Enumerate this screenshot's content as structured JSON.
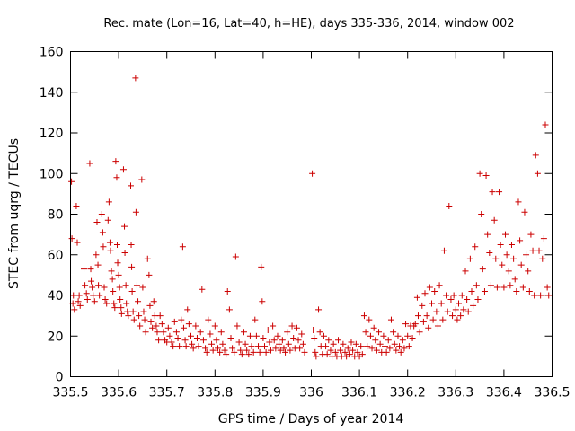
{
  "chart_data": {
    "type": "scatter",
    "title": "Rec. mate (Lon=16, Lat=40, h=HE), days 335-336, 2014, window 002",
    "xlabel": "GPS time / Days of year 2014",
    "ylabel": "STEC from uqrg / TECUs",
    "xlim": [
      335.5,
      336.5
    ],
    "ylim": [
      0,
      160
    ],
    "xticks": [
      "335.5",
      "335.6",
      "335.7",
      "335.8",
      "335.9",
      "336",
      "336.1",
      "336.2",
      "336.3",
      "336.4",
      "336.5"
    ],
    "yticks": [
      "0",
      "20",
      "40",
      "60",
      "80",
      "100",
      "120",
      "140",
      "160"
    ],
    "grid": false,
    "legend": "none",
    "marker": "plus",
    "color": "#cc0000",
    "points": [
      [
        335.502,
        96
      ],
      [
        335.503,
        68
      ],
      [
        335.506,
        40
      ],
      [
        335.505,
        36
      ],
      [
        335.508,
        33
      ],
      [
        335.512,
        84
      ],
      [
        335.514,
        66
      ],
      [
        335.518,
        40
      ],
      [
        335.516,
        37
      ],
      [
        335.52,
        35
      ],
      [
        335.528,
        53
      ],
      [
        335.53,
        45
      ],
      [
        335.533,
        41
      ],
      [
        335.535,
        38
      ],
      [
        335.54,
        105
      ],
      [
        335.542,
        53
      ],
      [
        335.543,
        47
      ],
      [
        335.545,
        44
      ],
      [
        335.547,
        40
      ],
      [
        335.55,
        37
      ],
      [
        335.553,
        60
      ],
      [
        335.555,
        76
      ],
      [
        335.557,
        55
      ],
      [
        335.558,
        45
      ],
      [
        335.56,
        40
      ],
      [
        335.565,
        80
      ],
      [
        335.567,
        71
      ],
      [
        335.568,
        64
      ],
      [
        335.57,
        44
      ],
      [
        335.572,
        38
      ],
      [
        335.575,
        36
      ],
      [
        335.578,
        77
      ],
      [
        335.58,
        86
      ],
      [
        335.582,
        66
      ],
      [
        335.583,
        62
      ],
      [
        335.585,
        52
      ],
      [
        335.587,
        48
      ],
      [
        335.588,
        42
      ],
      [
        335.59,
        36
      ],
      [
        335.592,
        34
      ],
      [
        335.594,
        106
      ],
      [
        335.596,
        98
      ],
      [
        335.597,
        65
      ],
      [
        335.598,
        56
      ],
      [
        335.6,
        50
      ],
      [
        335.602,
        44
      ],
      [
        335.603,
        38
      ],
      [
        335.605,
        34
      ],
      [
        335.606,
        31
      ],
      [
        335.61,
        102
      ],
      [
        335.612,
        74
      ],
      [
        335.613,
        61
      ],
      [
        335.615,
        45
      ],
      [
        335.616,
        36
      ],
      [
        335.618,
        32
      ],
      [
        335.62,
        30
      ],
      [
        335.625,
        94
      ],
      [
        335.626,
        65
      ],
      [
        335.627,
        54
      ],
      [
        335.628,
        42
      ],
      [
        335.63,
        32
      ],
      [
        335.632,
        28
      ],
      [
        335.635,
        147
      ],
      [
        335.636,
        81
      ],
      [
        335.638,
        45
      ],
      [
        335.64,
        37
      ],
      [
        335.642,
        30
      ],
      [
        335.644,
        25
      ],
      [
        335.648,
        97
      ],
      [
        335.65,
        44
      ],
      [
        335.652,
        32
      ],
      [
        335.654,
        28
      ],
      [
        335.656,
        22
      ],
      [
        335.66,
        58
      ],
      [
        335.663,
        50
      ],
      [
        335.665,
        35
      ],
      [
        335.667,
        27
      ],
      [
        335.67,
        24
      ],
      [
        335.673,
        37
      ],
      [
        335.675,
        30
      ],
      [
        335.678,
        25
      ],
      [
        335.68,
        22
      ],
      [
        335.683,
        18
      ],
      [
        335.686,
        30
      ],
      [
        335.69,
        26
      ],
      [
        335.693,
        22
      ],
      [
        335.696,
        18
      ],
      [
        335.7,
        17
      ],
      [
        335.703,
        24
      ],
      [
        335.706,
        20
      ],
      [
        335.71,
        17
      ],
      [
        335.713,
        15
      ],
      [
        335.716,
        27
      ],
      [
        335.72,
        22
      ],
      [
        335.723,
        19
      ],
      [
        335.726,
        15
      ],
      [
        335.73,
        28
      ],
      [
        335.733,
        64
      ],
      [
        335.735,
        24
      ],
      [
        335.738,
        18
      ],
      [
        335.74,
        15
      ],
      [
        335.743,
        33
      ],
      [
        335.746,
        26
      ],
      [
        335.75,
        20
      ],
      [
        335.752,
        16
      ],
      [
        335.755,
        14
      ],
      [
        335.76,
        25
      ],
      [
        335.763,
        19
      ],
      [
        335.766,
        15
      ],
      [
        335.77,
        22
      ],
      [
        335.773,
        43
      ],
      [
        335.776,
        18
      ],
      [
        335.78,
        14
      ],
      [
        335.783,
        12
      ],
      [
        335.786,
        28
      ],
      [
        335.79,
        21
      ],
      [
        335.793,
        16
      ],
      [
        335.796,
        13
      ],
      [
        335.8,
        25
      ],
      [
        335.803,
        18
      ],
      [
        335.806,
        14
      ],
      [
        335.81,
        12
      ],
      [
        335.813,
        22
      ],
      [
        335.816,
        16
      ],
      [
        335.82,
        13
      ],
      [
        335.823,
        11
      ],
      [
        335.826,
        42
      ],
      [
        335.83,
        33
      ],
      [
        335.833,
        19
      ],
      [
        335.836,
        14
      ],
      [
        335.84,
        12
      ],
      [
        335.843,
        59
      ],
      [
        335.846,
        25
      ],
      [
        335.85,
        17
      ],
      [
        335.853,
        13
      ],
      [
        335.856,
        11
      ],
      [
        335.86,
        22
      ],
      [
        335.863,
        16
      ],
      [
        335.866,
        13
      ],
      [
        335.87,
        11
      ],
      [
        335.873,
        20
      ],
      [
        335.876,
        15
      ],
      [
        335.88,
        12
      ],
      [
        335.883,
        28
      ],
      [
        335.886,
        20
      ],
      [
        335.89,
        15
      ],
      [
        335.893,
        12
      ],
      [
        335.896,
        54
      ],
      [
        335.898,
        37
      ],
      [
        335.9,
        19
      ],
      [
        335.903,
        15
      ],
      [
        335.906,
        12
      ],
      [
        335.91,
        23
      ],
      [
        335.913,
        17
      ],
      [
        335.916,
        13
      ],
      [
        335.92,
        25
      ],
      [
        335.923,
        18
      ],
      [
        335.926,
        14
      ],
      [
        335.93,
        20
      ],
      [
        335.933,
        16
      ],
      [
        335.936,
        13
      ],
      [
        335.94,
        18
      ],
      [
        335.943,
        14
      ],
      [
        335.946,
        12
      ],
      [
        335.95,
        22
      ],
      [
        335.953,
        16
      ],
      [
        335.956,
        13
      ],
      [
        335.96,
        25
      ],
      [
        335.963,
        19
      ],
      [
        335.966,
        14
      ],
      [
        335.97,
        24
      ],
      [
        335.973,
        18
      ],
      [
        335.976,
        14
      ],
      [
        335.98,
        21
      ],
      [
        335.983,
        16
      ],
      [
        335.986,
        12
      ],
      [
        336.002,
        100
      ],
      [
        336.004,
        23
      ],
      [
        336.006,
        19
      ],
      [
        336.008,
        12
      ],
      [
        336.01,
        10
      ],
      [
        336.015,
        33
      ],
      [
        336.018,
        22
      ],
      [
        336.02,
        15
      ],
      [
        336.023,
        11
      ],
      [
        336.026,
        20
      ],
      [
        336.03,
        15
      ],
      [
        336.033,
        11
      ],
      [
        336.036,
        18
      ],
      [
        336.04,
        13
      ],
      [
        336.043,
        10
      ],
      [
        336.046,
        16
      ],
      [
        336.05,
        12
      ],
      [
        336.053,
        10
      ],
      [
        336.056,
        18
      ],
      [
        336.06,
        13
      ],
      [
        336.063,
        10
      ],
      [
        336.066,
        16
      ],
      [
        336.07,
        12
      ],
      [
        336.073,
        10
      ],
      [
        336.076,
        14
      ],
      [
        336.08,
        11
      ],
      [
        336.083,
        17
      ],
      [
        336.086,
        13
      ],
      [
        336.09,
        10
      ],
      [
        336.093,
        16
      ],
      [
        336.096,
        12
      ],
      [
        336.1,
        10
      ],
      [
        336.103,
        15
      ],
      [
        336.106,
        11
      ],
      [
        336.11,
        30
      ],
      [
        336.113,
        22
      ],
      [
        336.116,
        15
      ],
      [
        336.12,
        28
      ],
      [
        336.123,
        20
      ],
      [
        336.126,
        14
      ],
      [
        336.13,
        24
      ],
      [
        336.133,
        18
      ],
      [
        336.136,
        13
      ],
      [
        336.14,
        22
      ],
      [
        336.143,
        16
      ],
      [
        336.146,
        12
      ],
      [
        336.15,
        20
      ],
      [
        336.153,
        15
      ],
      [
        336.156,
        12
      ],
      [
        336.16,
        18
      ],
      [
        336.163,
        14
      ],
      [
        336.166,
        28
      ],
      [
        336.17,
        22
      ],
      [
        336.173,
        16
      ],
      [
        336.176,
        13
      ],
      [
        336.18,
        20
      ],
      [
        336.183,
        15
      ],
      [
        336.186,
        12
      ],
      [
        336.19,
        18
      ],
      [
        336.193,
        14
      ],
      [
        336.196,
        26
      ],
      [
        336.2,
        20
      ],
      [
        336.203,
        15
      ],
      [
        336.206,
        25
      ],
      [
        336.21,
        19
      ],
      [
        336.213,
        25
      ],
      [
        336.216,
        26
      ],
      [
        336.22,
        39
      ],
      [
        336.222,
        30
      ],
      [
        336.225,
        22
      ],
      [
        336.23,
        35
      ],
      [
        336.233,
        27
      ],
      [
        336.236,
        41
      ],
      [
        336.24,
        30
      ],
      [
        336.243,
        24
      ],
      [
        336.246,
        44
      ],
      [
        336.25,
        36
      ],
      [
        336.253,
        28
      ],
      [
        336.256,
        42
      ],
      [
        336.26,
        32
      ],
      [
        336.263,
        25
      ],
      [
        336.266,
        45
      ],
      [
        336.27,
        36
      ],
      [
        336.273,
        28
      ],
      [
        336.276,
        62
      ],
      [
        336.28,
        40
      ],
      [
        336.283,
        32
      ],
      [
        336.286,
        84
      ],
      [
        336.29,
        38
      ],
      [
        336.293,
        30
      ],
      [
        336.296,
        40
      ],
      [
        336.3,
        33
      ],
      [
        336.303,
        28
      ],
      [
        336.306,
        36
      ],
      [
        336.31,
        30
      ],
      [
        336.313,
        40
      ],
      [
        336.316,
        33
      ],
      [
        336.32,
        52
      ],
      [
        336.323,
        38
      ],
      [
        336.326,
        32
      ],
      [
        336.33,
        58
      ],
      [
        336.333,
        42
      ],
      [
        336.336,
        35
      ],
      [
        336.34,
        64
      ],
      [
        336.343,
        45
      ],
      [
        336.346,
        38
      ],
      [
        336.35,
        100
      ],
      [
        336.353,
        80
      ],
      [
        336.356,
        53
      ],
      [
        336.36,
        42
      ],
      [
        336.363,
        99
      ],
      [
        336.366,
        70
      ],
      [
        336.37,
        61
      ],
      [
        336.373,
        45
      ],
      [
        336.376,
        91
      ],
      [
        336.38,
        77
      ],
      [
        336.383,
        58
      ],
      [
        336.386,
        44
      ],
      [
        336.39,
        91
      ],
      [
        336.393,
        65
      ],
      [
        336.396,
        55
      ],
      [
        336.4,
        44
      ],
      [
        336.403,
        70
      ],
      [
        336.406,
        60
      ],
      [
        336.41,
        52
      ],
      [
        336.413,
        45
      ],
      [
        336.416,
        65
      ],
      [
        336.42,
        58
      ],
      [
        336.423,
        48
      ],
      [
        336.426,
        42
      ],
      [
        336.43,
        86
      ],
      [
        336.433,
        67
      ],
      [
        336.436,
        55
      ],
      [
        336.44,
        44
      ],
      [
        336.443,
        81
      ],
      [
        336.446,
        60
      ],
      [
        336.45,
        52
      ],
      [
        336.453,
        42
      ],
      [
        336.456,
        70
      ],
      [
        336.46,
        62
      ],
      [
        336.463,
        40
      ],
      [
        336.466,
        109
      ],
      [
        336.47,
        100
      ],
      [
        336.473,
        62
      ],
      [
        336.476,
        40
      ],
      [
        336.48,
        58
      ],
      [
        336.483,
        68
      ],
      [
        336.486,
        124
      ],
      [
        336.49,
        44
      ],
      [
        336.493,
        40
      ]
    ]
  }
}
